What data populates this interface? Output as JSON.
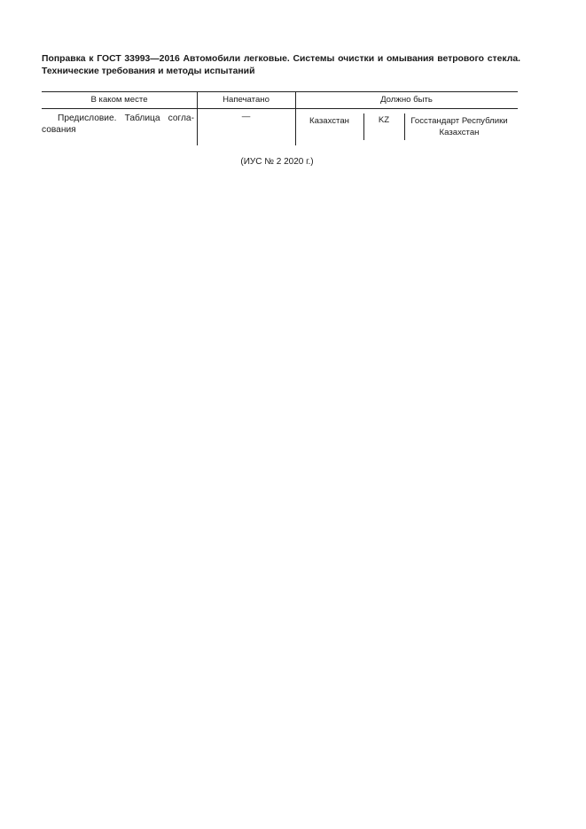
{
  "document": {
    "title": "Поправка к ГОСТ 33993—2016 Автомобили легковые. Системы очистки и омывания ветрового стекла. Технические требования и методы испытаний",
    "table": {
      "headers": [
        "В каком месте",
        "Напечатано",
        "Должно быть"
      ],
      "rows": [
        {
          "location": "Предисловие. Таблица согла-сования",
          "printed": "—",
          "should_be": [
            "Казахстан",
            "KZ",
            "Госстандарт Республики Казахстан"
          ]
        }
      ]
    },
    "footer": "(ИУС № 2  2020 г.)"
  }
}
